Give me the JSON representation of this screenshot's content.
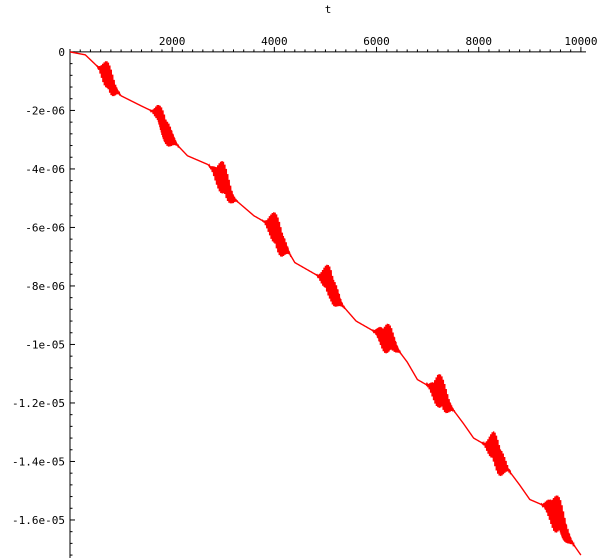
{
  "chart_data": {
    "type": "line",
    "title": "",
    "xlabel": "t",
    "ylabel": "",
    "xlim": [
      0,
      10100
    ],
    "ylim": [
      -1.73e-05,
      1e-07
    ],
    "x_ticks": [
      {
        "value": 2000,
        "label": "2000"
      },
      {
        "value": 4000,
        "label": "4000"
      },
      {
        "value": 6000,
        "label": "6000"
      },
      {
        "value": 8000,
        "label": "8000"
      },
      {
        "value": 10000,
        "label": "10000"
      }
    ],
    "y_ticks": [
      {
        "value": 0,
        "label": "0"
      },
      {
        "value": -2e-06,
        "label": "-2e-06"
      },
      {
        "value": -4e-06,
        "label": "-4e-06"
      },
      {
        "value": -6e-06,
        "label": "-6e-06"
      },
      {
        "value": -8e-06,
        "label": "-8e-06"
      },
      {
        "value": -1e-05,
        "label": "-1e-05"
      },
      {
        "value": -1.2e-05,
        "label": "-1.2e-05"
      },
      {
        "value": -1.4e-05,
        "label": "-1.4e-05"
      },
      {
        "value": -1.6e-05,
        "label": "-1.6e-05"
      }
    ],
    "series": [
      {
        "color": "#ff0000",
        "trend": [
          [
            0,
            0
          ],
          [
            300,
            -1e-07
          ],
          [
            600,
            -6e-07
          ],
          [
            1000,
            -1.5e-06
          ],
          [
            1400,
            -1.85e-06
          ],
          [
            1700,
            -2.1e-06
          ],
          [
            2000,
            -3e-06
          ],
          [
            2300,
            -3.55e-06
          ],
          [
            2700,
            -3.85e-06
          ],
          [
            3000,
            -4.4e-06
          ],
          [
            3200,
            -5e-06
          ],
          [
            3600,
            -5.6e-06
          ],
          [
            3900,
            -5.9e-06
          ],
          [
            4200,
            -6.6e-06
          ],
          [
            4400,
            -7.2e-06
          ],
          [
            4800,
            -7.6e-06
          ],
          [
            5100,
            -7.9e-06
          ],
          [
            5300,
            -8.6e-06
          ],
          [
            5600,
            -9.2e-06
          ],
          [
            6000,
            -9.6e-06
          ],
          [
            6300,
            -9.9e-06
          ],
          [
            6600,
            -1.06e-05
          ],
          [
            6800,
            -1.12e-05
          ],
          [
            7200,
            -1.16e-05
          ],
          [
            7400,
            -1.2e-05
          ],
          [
            7700,
            -1.27e-05
          ],
          [
            7900,
            -1.32e-05
          ],
          [
            8300,
            -1.36e-05
          ],
          [
            8500,
            -1.41e-05
          ],
          [
            8800,
            -1.48e-05
          ],
          [
            9000,
            -1.53e-05
          ],
          [
            9400,
            -1.56e-05
          ],
          [
            9600,
            -1.6e-05
          ],
          [
            9800,
            -1.67e-05
          ],
          [
            10000,
            -1.72e-05
          ]
        ],
        "oscillation_bursts": [
          [
            750,
            250,
            6e-07
          ],
          [
            1850,
            300,
            7e-07
          ],
          [
            3000,
            300,
            7e-07
          ],
          [
            4050,
            300,
            7e-07
          ],
          [
            5100,
            300,
            7e-07
          ],
          [
            6200,
            300,
            7e-07
          ],
          [
            7250,
            300,
            7e-07
          ],
          [
            8350,
            300,
            7e-07
          ],
          [
            9550,
            350,
            9e-07
          ]
        ]
      }
    ]
  }
}
